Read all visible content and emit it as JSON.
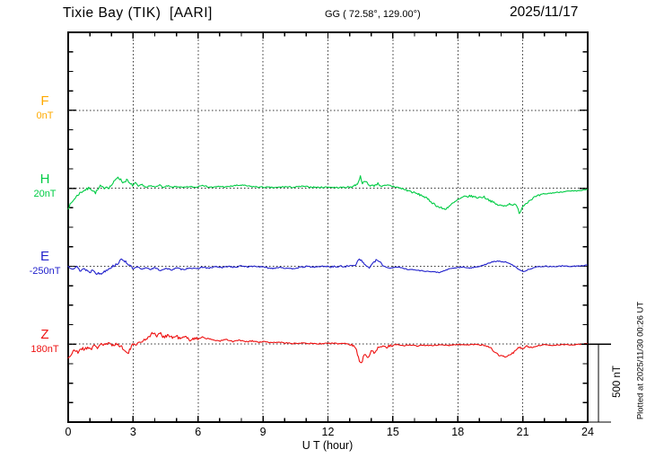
{
  "header": {
    "title": "Tixie Bay (TIK)  [AARI]",
    "coords": "GG ( 72.58°, 129.00°)",
    "date": "2025/11/17"
  },
  "side_note": "Plotted at 2025/11/30 00:26 UT",
  "scale_bar": {
    "label": "500 nT",
    "nT": 500
  },
  "axes": {
    "x_label": "U T (hour)",
    "x_ticks": [
      0,
      3,
      6,
      9,
      12,
      15,
      18,
      21,
      24
    ],
    "x_range": [
      0,
      24
    ],
    "grid_hours": [
      3,
      6,
      9,
      12,
      15,
      18,
      21
    ],
    "minor_tick_every_hours": 1
  },
  "components": [
    {
      "id": "F",
      "label": "F",
      "baseline_label": "0nT",
      "baseline_value": 0,
      "color": "#FFAA00",
      "has_data": false
    },
    {
      "id": "H",
      "label": "H",
      "baseline_label": "20nT",
      "baseline_value": 20,
      "color": "#00CC44",
      "has_data": true
    },
    {
      "id": "E",
      "label": "E",
      "baseline_label": "-250nT",
      "baseline_value": -250,
      "color": "#2222CC",
      "has_data": true
    },
    {
      "id": "Z",
      "label": "Z",
      "baseline_label": "180nT",
      "baseline_value": 180,
      "color": "#EE1111",
      "has_data": true
    }
  ],
  "chart_data": {
    "type": "line",
    "title": "Tixie Bay (TIK) [AARI] magnetogram, 2025/11/17",
    "xlabel": "U T (hour)",
    "x_range": [
      0,
      24
    ],
    "x_tick_step": 3,
    "grid": "dotted vertical every 3 h, dotted horizontal at each component baseline",
    "panel_spacing_nT": 500,
    "legend_position": "left edge (component letters F/H/E/Z with baseline values)",
    "series": [
      {
        "name": "F",
        "color": "#FFAA00",
        "baseline_nT": 0,
        "points": []
      },
      {
        "name": "H",
        "color": "#00CC44",
        "baseline_nT": 20,
        "noise_profile": [
          [
            0,
            3,
            9
          ],
          [
            3,
            13,
            4
          ],
          [
            13,
            15,
            7
          ],
          [
            15,
            22,
            7
          ],
          [
            22,
            24,
            3
          ]
        ],
        "points": [
          [
            0,
            -105
          ],
          [
            0.15,
            -75
          ],
          [
            0.3,
            -45
          ],
          [
            0.5,
            -15
          ],
          [
            0.7,
            5
          ],
          [
            0.9,
            15
          ],
          [
            1.0,
            25
          ],
          [
            1.1,
            10
          ],
          [
            1.25,
            -10
          ],
          [
            1.4,
            15
          ],
          [
            1.5,
            35
          ],
          [
            1.6,
            20
          ],
          [
            1.75,
            30
          ],
          [
            1.9,
            25
          ],
          [
            2.0,
            40
          ],
          [
            2.15,
            65
          ],
          [
            2.3,
            95
          ],
          [
            2.45,
            70
          ],
          [
            2.55,
            55
          ],
          [
            2.7,
            75
          ],
          [
            2.85,
            45
          ],
          [
            3.0,
            40
          ],
          [
            3.1,
            55
          ],
          [
            3.25,
            30
          ],
          [
            3.4,
            45
          ],
          [
            3.6,
            25
          ],
          [
            3.8,
            35
          ],
          [
            4.0,
            28
          ],
          [
            4.2,
            42
          ],
          [
            4.4,
            25
          ],
          [
            4.6,
            35
          ],
          [
            4.8,
            25
          ],
          [
            5.0,
            32
          ],
          [
            5.3,
            24
          ],
          [
            5.6,
            30
          ],
          [
            5.9,
            26
          ],
          [
            6.2,
            42
          ],
          [
            6.4,
            30
          ],
          [
            6.7,
            26
          ],
          [
            7.0,
            32
          ],
          [
            7.3,
            28
          ],
          [
            7.6,
            35
          ],
          [
            8.0,
            40
          ],
          [
            8.4,
            32
          ],
          [
            8.8,
            28
          ],
          [
            9.2,
            26
          ],
          [
            9.6,
            24
          ],
          [
            10.0,
            30
          ],
          [
            10.4,
            26
          ],
          [
            10.8,
            32
          ],
          [
            11.2,
            28
          ],
          [
            11.6,
            25
          ],
          [
            12.0,
            28
          ],
          [
            12.4,
            24
          ],
          [
            12.8,
            26
          ],
          [
            13.1,
            30
          ],
          [
            13.35,
            45
          ],
          [
            13.5,
            95
          ],
          [
            13.6,
            50
          ],
          [
            13.75,
            65
          ],
          [
            13.9,
            40
          ],
          [
            14.1,
            35
          ],
          [
            14.3,
            50
          ],
          [
            14.5,
            32
          ],
          [
            14.8,
            38
          ],
          [
            15.1,
            30
          ],
          [
            15.4,
            18
          ],
          [
            15.7,
            5
          ],
          [
            16.0,
            -10
          ],
          [
            16.4,
            -30
          ],
          [
            16.8,
            -70
          ],
          [
            17.1,
            -100
          ],
          [
            17.4,
            -115
          ],
          [
            17.7,
            -85
          ],
          [
            18.0,
            -55
          ],
          [
            18.3,
            -35
          ],
          [
            18.6,
            -30
          ],
          [
            18.9,
            -40
          ],
          [
            19.2,
            -35
          ],
          [
            19.5,
            -60
          ],
          [
            19.8,
            -85
          ],
          [
            20.1,
            -95
          ],
          [
            20.4,
            -80
          ],
          [
            20.7,
            -90
          ],
          [
            20.85,
            -140
          ],
          [
            21.0,
            -95
          ],
          [
            21.2,
            -70
          ],
          [
            21.5,
            -40
          ],
          [
            21.8,
            -25
          ],
          [
            22.1,
            -15
          ],
          [
            22.5,
            -8
          ],
          [
            23.0,
            0
          ],
          [
            23.5,
            2
          ],
          [
            24,
            12
          ]
        ]
      },
      {
        "name": "E",
        "color": "#2222CC",
        "baseline_nT": -250,
        "noise_profile": [
          [
            0,
            3,
            8
          ],
          [
            3,
            12,
            4
          ],
          [
            12,
            15,
            6
          ],
          [
            15,
            24,
            3
          ]
        ],
        "points": [
          [
            0,
            -252
          ],
          [
            0.2,
            -262
          ],
          [
            0.4,
            -255
          ],
          [
            0.55,
            -280
          ],
          [
            0.7,
            -265
          ],
          [
            0.85,
            -275
          ],
          [
            1.0,
            -290
          ],
          [
            1.15,
            -270
          ],
          [
            1.3,
            -295
          ],
          [
            1.5,
            -300
          ],
          [
            1.7,
            -280
          ],
          [
            1.9,
            -262
          ],
          [
            2.1,
            -248
          ],
          [
            2.3,
            -230
          ],
          [
            2.5,
            -205
          ],
          [
            2.65,
            -220
          ],
          [
            2.8,
            -240
          ],
          [
            3.0,
            -268
          ],
          [
            3.2,
            -255
          ],
          [
            3.4,
            -272
          ],
          [
            3.6,
            -258
          ],
          [
            3.8,
            -270
          ],
          [
            4.0,
            -260
          ],
          [
            4.25,
            -278
          ],
          [
            4.5,
            -264
          ],
          [
            4.75,
            -274
          ],
          [
            5.0,
            -262
          ],
          [
            5.3,
            -272
          ],
          [
            5.6,
            -260
          ],
          [
            5.9,
            -268
          ],
          [
            6.2,
            -256
          ],
          [
            6.5,
            -264
          ],
          [
            6.8,
            -252
          ],
          [
            7.1,
            -260
          ],
          [
            7.4,
            -250
          ],
          [
            7.7,
            -258
          ],
          [
            8.0,
            -248
          ],
          [
            8.3,
            -254
          ],
          [
            8.6,
            -250
          ],
          [
            9.0,
            -256
          ],
          [
            9.4,
            -264
          ],
          [
            9.8,
            -256
          ],
          [
            10.2,
            -268
          ],
          [
            10.6,
            -260
          ],
          [
            11.0,
            -252
          ],
          [
            11.4,
            -256
          ],
          [
            11.8,
            -250
          ],
          [
            12.2,
            -254
          ],
          [
            12.6,
            -252
          ],
          [
            13.0,
            -250
          ],
          [
            13.3,
            -238
          ],
          [
            13.45,
            -198
          ],
          [
            13.6,
            -225
          ],
          [
            13.75,
            -245
          ],
          [
            13.9,
            -260
          ],
          [
            14.1,
            -230
          ],
          [
            14.25,
            -208
          ],
          [
            14.4,
            -225
          ],
          [
            14.6,
            -252
          ],
          [
            14.9,
            -262
          ],
          [
            15.2,
            -254
          ],
          [
            15.6,
            -268
          ],
          [
            16.0,
            -274
          ],
          [
            16.4,
            -280
          ],
          [
            16.8,
            -286
          ],
          [
            17.2,
            -290
          ],
          [
            17.5,
            -272
          ],
          [
            17.8,
            -262
          ],
          [
            18.2,
            -256
          ],
          [
            18.6,
            -262
          ],
          [
            19.0,
            -250
          ],
          [
            19.3,
            -238
          ],
          [
            19.6,
            -222
          ],
          [
            19.9,
            -218
          ],
          [
            20.2,
            -224
          ],
          [
            20.5,
            -240
          ],
          [
            20.8,
            -268
          ],
          [
            21.05,
            -286
          ],
          [
            21.3,
            -268
          ],
          [
            21.6,
            -256
          ],
          [
            22.0,
            -250
          ],
          [
            22.4,
            -253
          ],
          [
            22.8,
            -249
          ],
          [
            23.2,
            -251
          ],
          [
            23.6,
            -249
          ],
          [
            24,
            -244
          ]
        ]
      },
      {
        "name": "Z",
        "color": "#EE1111",
        "baseline_nT": 180,
        "noise_profile": [
          [
            0,
            6,
            11
          ],
          [
            6,
            13,
            4
          ],
          [
            13,
            15,
            9
          ],
          [
            15,
            19,
            3
          ],
          [
            19,
            21.5,
            6
          ],
          [
            21.5,
            24,
            3
          ]
        ],
        "points": [
          [
            0,
            92
          ],
          [
            0.15,
            115
          ],
          [
            0.3,
            140
          ],
          [
            0.45,
            128
          ],
          [
            0.6,
            155
          ],
          [
            0.75,
            145
          ],
          [
            0.9,
            162
          ],
          [
            1.05,
            150
          ],
          [
            1.2,
            168
          ],
          [
            1.35,
            158
          ],
          [
            1.5,
            185
          ],
          [
            1.65,
            172
          ],
          [
            1.8,
            182
          ],
          [
            2.0,
            176
          ],
          [
            2.2,
            182
          ],
          [
            2.4,
            168
          ],
          [
            2.6,
            150
          ],
          [
            2.75,
            115
          ],
          [
            2.9,
            158
          ],
          [
            3.05,
            188
          ],
          [
            3.2,
            180
          ],
          [
            3.35,
            195
          ],
          [
            3.5,
            205
          ],
          [
            3.65,
            220
          ],
          [
            3.8,
            240
          ],
          [
            3.95,
            252
          ],
          [
            4.1,
            232
          ],
          [
            4.25,
            248
          ],
          [
            4.4,
            228
          ],
          [
            4.6,
            238
          ],
          [
            4.8,
            222
          ],
          [
            5.0,
            230
          ],
          [
            5.2,
            214
          ],
          [
            5.4,
            226
          ],
          [
            5.6,
            208
          ],
          [
            5.8,
            218
          ],
          [
            6.0,
            212
          ],
          [
            6.2,
            228
          ],
          [
            6.4,
            215
          ],
          [
            6.7,
            208
          ],
          [
            7.0,
            200
          ],
          [
            7.3,
            210
          ],
          [
            7.6,
            196
          ],
          [
            7.9,
            206
          ],
          [
            8.2,
            194
          ],
          [
            8.5,
            200
          ],
          [
            8.8,
            192
          ],
          [
            9.1,
            196
          ],
          [
            9.4,
            188
          ],
          [
            9.7,
            194
          ],
          [
            10.0,
            188
          ],
          [
            10.4,
            184
          ],
          [
            10.8,
            190
          ],
          [
            11.2,
            184
          ],
          [
            11.6,
            182
          ],
          [
            12.0,
            186
          ],
          [
            12.4,
            183
          ],
          [
            12.8,
            184
          ],
          [
            13.1,
            180
          ],
          [
            13.3,
            150
          ],
          [
            13.45,
            75
          ],
          [
            13.55,
            60
          ],
          [
            13.7,
            118
          ],
          [
            13.85,
            95
          ],
          [
            14.0,
            140
          ],
          [
            14.15,
            125
          ],
          [
            14.3,
            155
          ],
          [
            14.5,
            168
          ],
          [
            14.7,
            160
          ],
          [
            14.9,
            172
          ],
          [
            15.2,
            178
          ],
          [
            15.5,
            170
          ],
          [
            15.8,
            176
          ],
          [
            16.1,
            168
          ],
          [
            16.4,
            174
          ],
          [
            16.8,
            170
          ],
          [
            17.2,
            176
          ],
          [
            17.6,
            172
          ],
          [
            18.0,
            178
          ],
          [
            18.4,
            175
          ],
          [
            18.8,
            178
          ],
          [
            19.2,
            174
          ],
          [
            19.5,
            162
          ],
          [
            19.7,
            128
          ],
          [
            19.9,
            108
          ],
          [
            20.1,
            100
          ],
          [
            20.3,
            104
          ],
          [
            20.6,
            128
          ],
          [
            20.85,
            162
          ],
          [
            21.0,
            148
          ],
          [
            21.2,
            168
          ],
          [
            21.4,
            158
          ],
          [
            21.7,
            170
          ],
          [
            22.0,
            176
          ],
          [
            22.4,
            172
          ],
          [
            22.8,
            178
          ],
          [
            23.2,
            175
          ],
          [
            23.6,
            178
          ],
          [
            24,
            186
          ]
        ]
      }
    ]
  },
  "colors": {
    "frame": "#000000",
    "grid": "#333333",
    "background": "#ffffff"
  }
}
